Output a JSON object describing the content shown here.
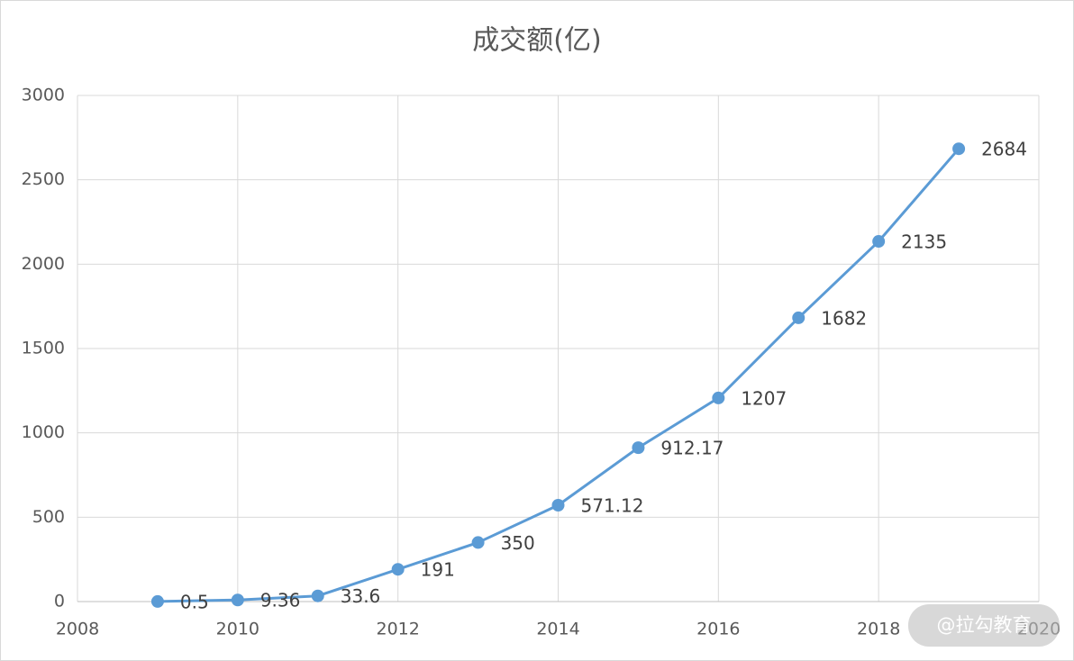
{
  "chart_data": {
    "type": "line",
    "title": "成交额(亿)",
    "x": [
      2009,
      2010,
      2011,
      2012,
      2013,
      2014,
      2015,
      2016,
      2017,
      2018,
      2019
    ],
    "values": [
      0.5,
      9.36,
      33.6,
      191,
      350,
      571.12,
      912.17,
      1207,
      1682,
      2135,
      2684
    ],
    "color": "#5b9bd5",
    "xlim": [
      2008,
      2020
    ],
    "xticks": [
      2008,
      2010,
      2012,
      2014,
      2016,
      2018,
      2020
    ],
    "ylim": [
      0,
      3000
    ],
    "yticks": [
      0,
      500,
      1000,
      1500,
      2000,
      2500,
      3000
    ],
    "grid": true,
    "data_labels": true
  },
  "watermark": "@拉勾教育"
}
